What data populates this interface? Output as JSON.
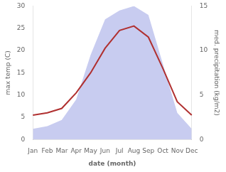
{
  "chart_data": {
    "type": "line",
    "xlabel": "date (month)",
    "ylabel": "max temp (C)",
    "y2label": "med. precipitation (kg/m2)",
    "categories": [
      "Jan",
      "Feb",
      "Mar",
      "Apr",
      "May",
      "Jun",
      "Jul",
      "Aug",
      "Sep",
      "Oct",
      "Nov",
      "Dec"
    ],
    "series": [
      {
        "type": "area",
        "axis": "y2",
        "color": "#c8ccf0",
        "values": [
          1.2,
          1.5,
          2.2,
          4.5,
          9.5,
          13.5,
          14.5,
          15.0,
          14.0,
          8.5,
          3.0,
          1.2
        ]
      },
      {
        "type": "line",
        "color": "#b03030",
        "values": [
          5.5,
          6.0,
          7.0,
          10.5,
          15.0,
          20.5,
          24.5,
          25.5,
          23.0,
          16.0,
          8.5,
          5.5
        ]
      }
    ],
    "ylim": [
      0,
      30
    ],
    "yticks": [
      0,
      5,
      10,
      15,
      20,
      25,
      30
    ],
    "y2lim": [
      0,
      15
    ],
    "y2ticks": [
      0,
      5,
      10,
      15
    ],
    "grid": false
  }
}
